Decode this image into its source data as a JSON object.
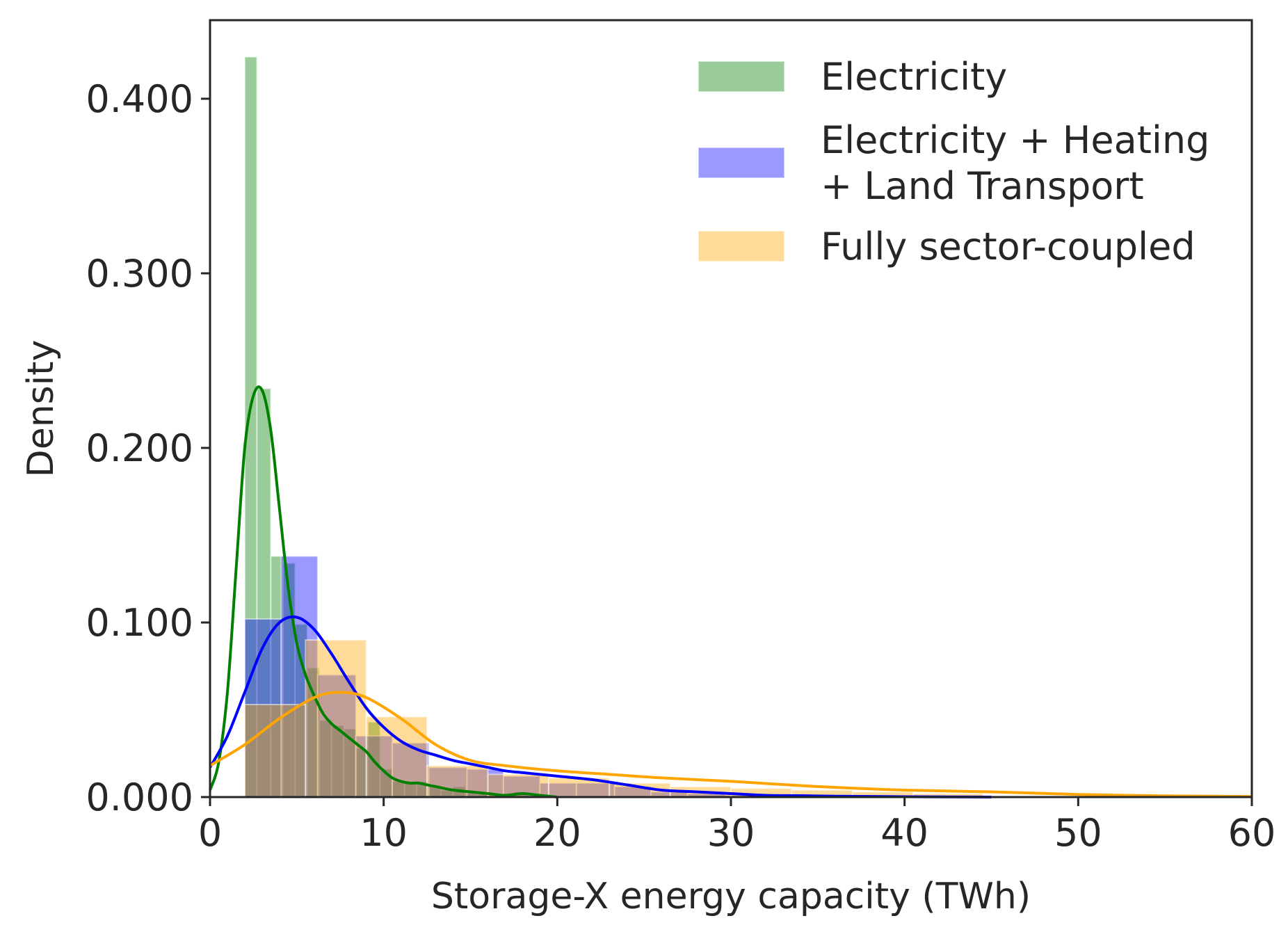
{
  "chart_data": {
    "type": "histogram",
    "xlabel": "Storage-X energy capacity (TWh)",
    "ylabel": "Density",
    "xlim": [
      0,
      60
    ],
    "ylim": [
      0,
      0.445
    ],
    "xticks": [
      0,
      10,
      20,
      30,
      40,
      50,
      60
    ],
    "xtick_labels": [
      "0",
      "10",
      "20",
      "30",
      "40",
      "50",
      "60"
    ],
    "yticks": [
      0,
      0.1,
      0.2,
      0.3,
      0.4
    ],
    "ytick_labels": [
      "0.000",
      "0.100",
      "0.200",
      "0.300",
      "0.400"
    ],
    "grid": false,
    "legend_position": "top-right",
    "series": [
      {
        "name": "Electricity",
        "color": "#008000",
        "bins": [
          {
            "x0": 2.0,
            "x1": 2.7,
            "density": 0.424
          },
          {
            "x0": 2.7,
            "x1": 3.5,
            "density": 0.234
          },
          {
            "x0": 3.5,
            "x1": 4.2,
            "density": 0.138
          },
          {
            "x0": 4.2,
            "x1": 4.9,
            "density": 0.134
          },
          {
            "x0": 4.9,
            "x1": 5.6,
            "density": 0.099
          },
          {
            "x0": 5.6,
            "x1": 6.3,
            "density": 0.074
          },
          {
            "x0": 6.3,
            "x1": 7.0,
            "density": 0.044
          },
          {
            "x0": 7.0,
            "x1": 7.7,
            "density": 0.041
          },
          {
            "x0": 7.7,
            "x1": 8.4,
            "density": 0.039
          },
          {
            "x0": 8.4,
            "x1": 9.1,
            "density": 0.028
          },
          {
            "x0": 9.1,
            "x1": 9.8,
            "density": 0.043
          },
          {
            "x0": 9.8,
            "x1": 10.5,
            "density": 0.016
          },
          {
            "x0": 10.5,
            "x1": 11.2,
            "density": 0.009
          },
          {
            "x0": 11.2,
            "x1": 11.9,
            "density": 0.008
          },
          {
            "x0": 11.9,
            "x1": 12.6,
            "density": 0.009
          },
          {
            "x0": 12.6,
            "x1": 13.3,
            "density": 0.006
          },
          {
            "x0": 13.3,
            "x1": 14.0,
            "density": 0.004
          },
          {
            "x0": 14.0,
            "x1": 14.7,
            "density": 0.006
          },
          {
            "x0": 14.7,
            "x1": 15.4,
            "density": 0.003
          },
          {
            "x0": 15.4,
            "x1": 16.1,
            "density": 0.002
          },
          {
            "x0": 16.1,
            "x1": 16.8,
            "density": 0.001
          },
          {
            "x0": 16.8,
            "x1": 17.5,
            "density": 0.002
          },
          {
            "x0": 17.5,
            "x1": 18.2,
            "density": 0.003
          },
          {
            "x0": 18.2,
            "x1": 18.9,
            "density": 0.001
          }
        ],
        "kde": {
          "x": [
            0,
            0.5,
            1,
            1.5,
            2,
            2.5,
            3,
            3.5,
            4,
            4.5,
            5,
            5.5,
            6,
            6.5,
            7,
            7.5,
            8,
            8.5,
            9,
            9.5,
            10,
            10.5,
            11,
            11.5,
            12,
            12.5,
            13,
            14,
            15,
            16,
            17,
            18,
            19,
            20
          ],
          "y": [
            0.004,
            0.02,
            0.06,
            0.13,
            0.2,
            0.23,
            0.233,
            0.21,
            0.165,
            0.12,
            0.088,
            0.07,
            0.058,
            0.048,
            0.042,
            0.038,
            0.034,
            0.03,
            0.026,
            0.02,
            0.015,
            0.011,
            0.009,
            0.008,
            0.008,
            0.007,
            0.006,
            0.004,
            0.003,
            0.002,
            0.001,
            0.002,
            0.001,
            0.0
          ]
        }
      },
      {
        "name": "Electricity + Heating + Land Transport",
        "legend_lines": [
          "Electricity + Heating",
          "+ Land Transport"
        ],
        "color": "#0000ff",
        "bins": [
          {
            "x0": 2.0,
            "x1": 4.1,
            "density": 0.102
          },
          {
            "x0": 4.1,
            "x1": 6.2,
            "density": 0.138
          },
          {
            "x0": 6.2,
            "x1": 8.4,
            "density": 0.07
          },
          {
            "x0": 8.4,
            "x1": 10.5,
            "density": 0.035
          },
          {
            "x0": 10.5,
            "x1": 12.6,
            "density": 0.031
          },
          {
            "x0": 12.6,
            "x1": 14.8,
            "density": 0.017
          },
          {
            "x0": 14.8,
            "x1": 16.9,
            "density": 0.016
          },
          {
            "x0": 16.9,
            "x1": 19.0,
            "density": 0.012
          },
          {
            "x0": 19.0,
            "x1": 21.1,
            "density": 0.008
          },
          {
            "x0": 21.1,
            "x1": 23.3,
            "density": 0.008
          },
          {
            "x0": 23.3,
            "x1": 25.4,
            "density": 0.006
          },
          {
            "x0": 25.4,
            "x1": 27.5,
            "density": 0.003
          },
          {
            "x0": 27.5,
            "x1": 29.7,
            "density": 0.002
          },
          {
            "x0": 29.7,
            "x1": 31.8,
            "density": 0.001
          },
          {
            "x0": 31.8,
            "x1": 33.9,
            "density": 0.001
          },
          {
            "x0": 33.9,
            "x1": 36.0,
            "density": 0.001
          }
        ],
        "kde": {
          "x": [
            0,
            1,
            2,
            3,
            4,
            5,
            6,
            7,
            8,
            9,
            10,
            11,
            12,
            13,
            14,
            15,
            16,
            17,
            18,
            20,
            22,
            24,
            26,
            28,
            30,
            32,
            34,
            36,
            40,
            45
          ],
          "y": [
            0.017,
            0.035,
            0.06,
            0.085,
            0.1,
            0.103,
            0.096,
            0.082,
            0.066,
            0.051,
            0.04,
            0.032,
            0.027,
            0.024,
            0.021,
            0.019,
            0.017,
            0.015,
            0.014,
            0.012,
            0.01,
            0.007,
            0.004,
            0.003,
            0.002,
            0.001,
            0.0008,
            0.0005,
            0.0002,
            0.0
          ]
        }
      },
      {
        "name": "Fully sector-coupled",
        "color": "#ffa500",
        "bins": [
          {
            "x0": 2.0,
            "x1": 5.5,
            "density": 0.053
          },
          {
            "x0": 5.5,
            "x1": 9.0,
            "density": 0.09
          },
          {
            "x0": 9.0,
            "x1": 12.5,
            "density": 0.046
          },
          {
            "x0": 12.5,
            "x1": 16.0,
            "density": 0.018
          },
          {
            "x0": 16.0,
            "x1": 19.5,
            "density": 0.013
          },
          {
            "x0": 19.5,
            "x1": 23.0,
            "density": 0.011
          },
          {
            "x0": 23.0,
            "x1": 26.5,
            "density": 0.008
          },
          {
            "x0": 26.5,
            "x1": 30.0,
            "density": 0.006
          },
          {
            "x0": 30.0,
            "x1": 33.5,
            "density": 0.005
          },
          {
            "x0": 33.5,
            "x1": 37.0,
            "density": 0.004
          },
          {
            "x0": 37.0,
            "x1": 40.5,
            "density": 0.003
          },
          {
            "x0": 40.5,
            "x1": 44.5,
            "density": 0.002
          }
        ],
        "kde": {
          "x": [
            0,
            2,
            4,
            6,
            7.5,
            9,
            11,
            13,
            15,
            17,
            20,
            23,
            26,
            30,
            35,
            40,
            45,
            50,
            55,
            60
          ],
          "y": [
            0.018,
            0.03,
            0.045,
            0.057,
            0.06,
            0.057,
            0.045,
            0.03,
            0.021,
            0.018,
            0.015,
            0.013,
            0.011,
            0.009,
            0.006,
            0.004,
            0.003,
            0.0015,
            0.0007,
            0.0003
          ]
        }
      }
    ]
  }
}
